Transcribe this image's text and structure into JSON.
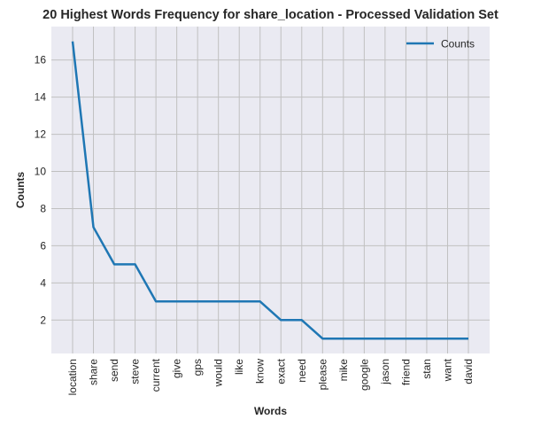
{
  "chart_data": {
    "type": "line",
    "title": "20 Highest Words Frequency for share_location - Processed Validation Set",
    "xlabel": "Words",
    "ylabel": "Counts",
    "categories": [
      "location",
      "share",
      "send",
      "steve",
      "current",
      "give",
      "gps",
      "would",
      "like",
      "know",
      "exact",
      "need",
      "please",
      "mike",
      "google",
      "jason",
      "friend",
      "stan",
      "want",
      "david"
    ],
    "series": [
      {
        "name": "Counts",
        "values": [
          17,
          7,
          5,
          5,
          3,
          3,
          3,
          3,
          3,
          3,
          2,
          2,
          1,
          1,
          1,
          1,
          1,
          1,
          1,
          1
        ],
        "color": "#1f77b4"
      }
    ],
    "ylim": [
      0.2,
      17.8
    ],
    "yticks": [
      2,
      4,
      6,
      8,
      10,
      12,
      14,
      16
    ],
    "grid": true,
    "legend": "top-right",
    "background": "#eaeaf2",
    "grid_color": "#c0c0c0"
  }
}
